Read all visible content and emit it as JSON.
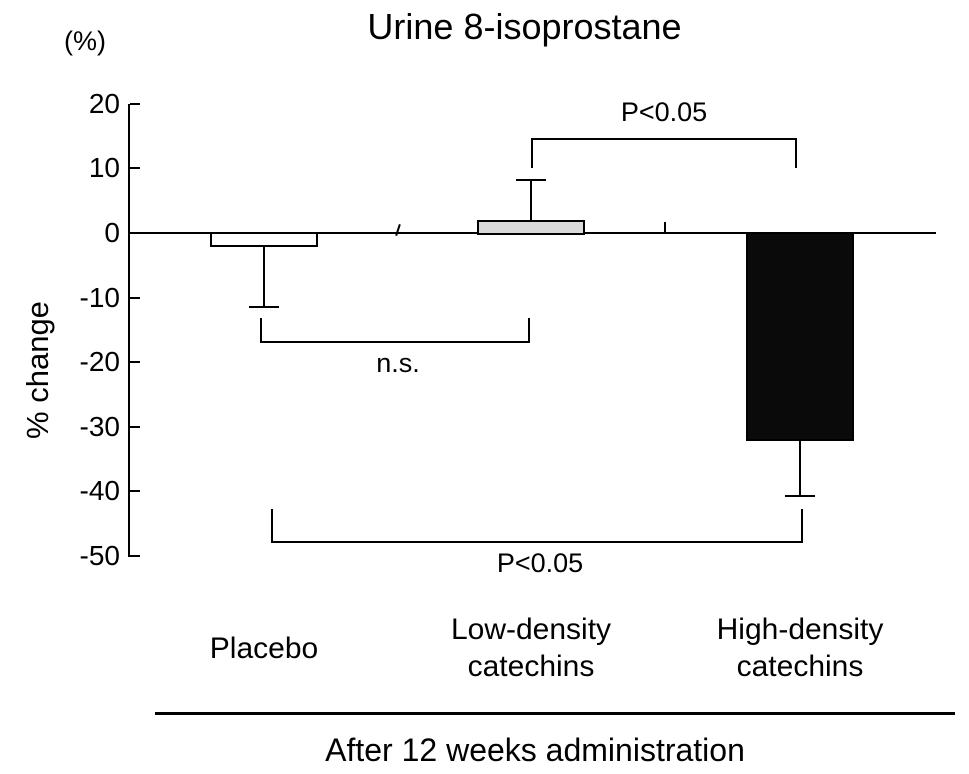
{
  "figure": {
    "title": "Urine 8-isoprostane",
    "unit_label": "(%)",
    "y_axis_label": "% change",
    "x_axis_title": "After 12 weeks administration"
  },
  "chart_data": {
    "type": "bar",
    "title": "Urine 8-isoprostane",
    "ylabel": "% change",
    "ylabel_unit": "(%)",
    "xlabel": "After 12 weeks administration",
    "ylim": [
      -50,
      20
    ],
    "yticks": [
      20,
      10,
      0,
      -10,
      -20,
      -30,
      -40,
      -50
    ],
    "grid": false,
    "categories": [
      "Placebo",
      "Low-density\ncatechins",
      "High-density\ncatechins"
    ],
    "values": [
      -2,
      2,
      -32
    ],
    "errors": [
      9.5,
      6.2,
      8.7
    ],
    "error_direction": "away-from-zero",
    "bar_colors": [
      "#ffffff",
      "#d9d9d9",
      "#0a0a0a"
    ],
    "bar_border_color": "#000000",
    "significance_annotations": [
      {
        "between": [
          "Low-density catechins",
          "High-density catechins"
        ],
        "label": "P<0.05",
        "position": "top"
      },
      {
        "between": [
          "Placebo",
          "Low-density catechins"
        ],
        "label": "n.s.",
        "position": "middle"
      },
      {
        "between": [
          "Placebo",
          "High-density catechins"
        ],
        "label": "P<0.05",
        "position": "bottom"
      }
    ]
  }
}
